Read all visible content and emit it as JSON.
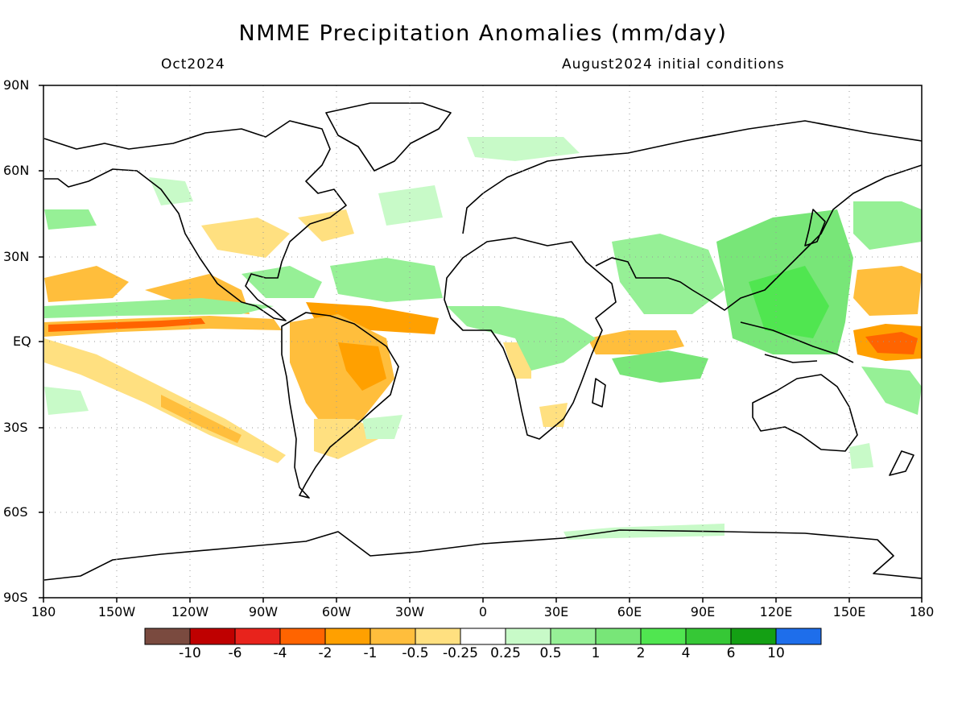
{
  "title": "NMME Precipitation Anomalies (mm/day)",
  "target_month": "Oct2024",
  "initial_conditions": "August2024 initial conditions",
  "lat_labels": [
    "90N",
    "60N",
    "30N",
    "EQ",
    "30S",
    "60S",
    "90S"
  ],
  "lon_labels": [
    "180",
    "150W",
    "120W",
    "90W",
    "60W",
    "30W",
    "0",
    "30E",
    "60E",
    "90E",
    "120E",
    "150E",
    "180"
  ],
  "legend": {
    "colors": [
      "#7a4a3f",
      "#bf0000",
      "#e8231c",
      "#ff6400",
      "#ffa000",
      "#ffbe3c",
      "#ffe080",
      "#ffffff",
      "#c8fac8",
      "#96f096",
      "#78e678",
      "#50e650",
      "#36c836",
      "#14a014",
      "#1e6eeb"
    ],
    "labels": [
      "-10",
      "-6",
      "-4",
      "-2",
      "-1",
      "-0.5",
      "-0.25",
      "0.25",
      "0.5",
      "1",
      "2",
      "4",
      "6",
      "10"
    ]
  },
  "map_colors": {
    "coast": "#000000",
    "grid": "#999999",
    "dry_light": "#ffe080",
    "dry_mid": "#ffbe3c",
    "dry_strong": "#ffa000",
    "dry_very": "#ff6400",
    "wet_light": "#c8fac8",
    "wet_mid": "#96f096",
    "wet_strong": "#78e678",
    "wet_very": "#50e650"
  }
}
